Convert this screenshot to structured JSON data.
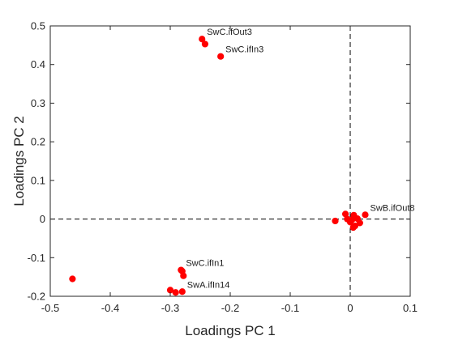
{
  "chart_data": {
    "type": "scatter",
    "title": "",
    "xlabel": "Loadings PC 1",
    "ylabel": "Loadings PC 2",
    "xlim": [
      -0.5,
      0.1
    ],
    "ylim": [
      -0.2,
      0.5
    ],
    "xticks": [
      "-0.5",
      "-0.4",
      "-0.3",
      "-0.2",
      "-0.1",
      "0",
      "0.1"
    ],
    "yticks": [
      "-0.2",
      "-0.1",
      "0",
      "0.1",
      "0.2",
      "0.3",
      "0.4",
      "0.5"
    ],
    "grid": false,
    "reference_lines": {
      "x": 0,
      "y": 0,
      "style": "dashed"
    },
    "marker_color": "#ff0000",
    "points": [
      {
        "x": -0.247,
        "y": 0.466
      },
      {
        "x": -0.242,
        "y": 0.453
      },
      {
        "x": -0.216,
        "y": 0.421
      },
      {
        "x": -0.463,
        "y": -0.155
      },
      {
        "x": -0.282,
        "y": -0.132
      },
      {
        "x": -0.28,
        "y": -0.135
      },
      {
        "x": -0.278,
        "y": -0.147
      },
      {
        "x": -0.3,
        "y": -0.184
      },
      {
        "x": -0.291,
        "y": -0.19
      },
      {
        "x": -0.28,
        "y": -0.188
      },
      {
        "x": -0.025,
        "y": -0.005
      },
      {
        "x": -0.008,
        "y": 0.013
      },
      {
        "x": -0.005,
        "y": 0.0
      },
      {
        "x": 0.0,
        "y": -0.008
      },
      {
        "x": 0.003,
        "y": -0.002
      },
      {
        "x": 0.006,
        "y": 0.01
      },
      {
        "x": 0.008,
        "y": -0.018
      },
      {
        "x": 0.005,
        "y": -0.022
      },
      {
        "x": 0.012,
        "y": 0.001
      },
      {
        "x": 0.016,
        "y": -0.01
      },
      {
        "x": 0.025,
        "y": 0.011
      }
    ],
    "annotations": [
      {
        "text": "SwC.ifOut3",
        "x": -0.247,
        "y": 0.466
      },
      {
        "text": "SwC.ifIn3",
        "x": -0.216,
        "y": 0.421
      },
      {
        "text": "SwB.ifOut8",
        "x": 0.025,
        "y": 0.011
      },
      {
        "text": "SwC.ifIn1",
        "x": -0.282,
        "y": -0.132
      },
      {
        "text": "SwA.ifIn14",
        "x": -0.28,
        "y": -0.188
      }
    ]
  }
}
